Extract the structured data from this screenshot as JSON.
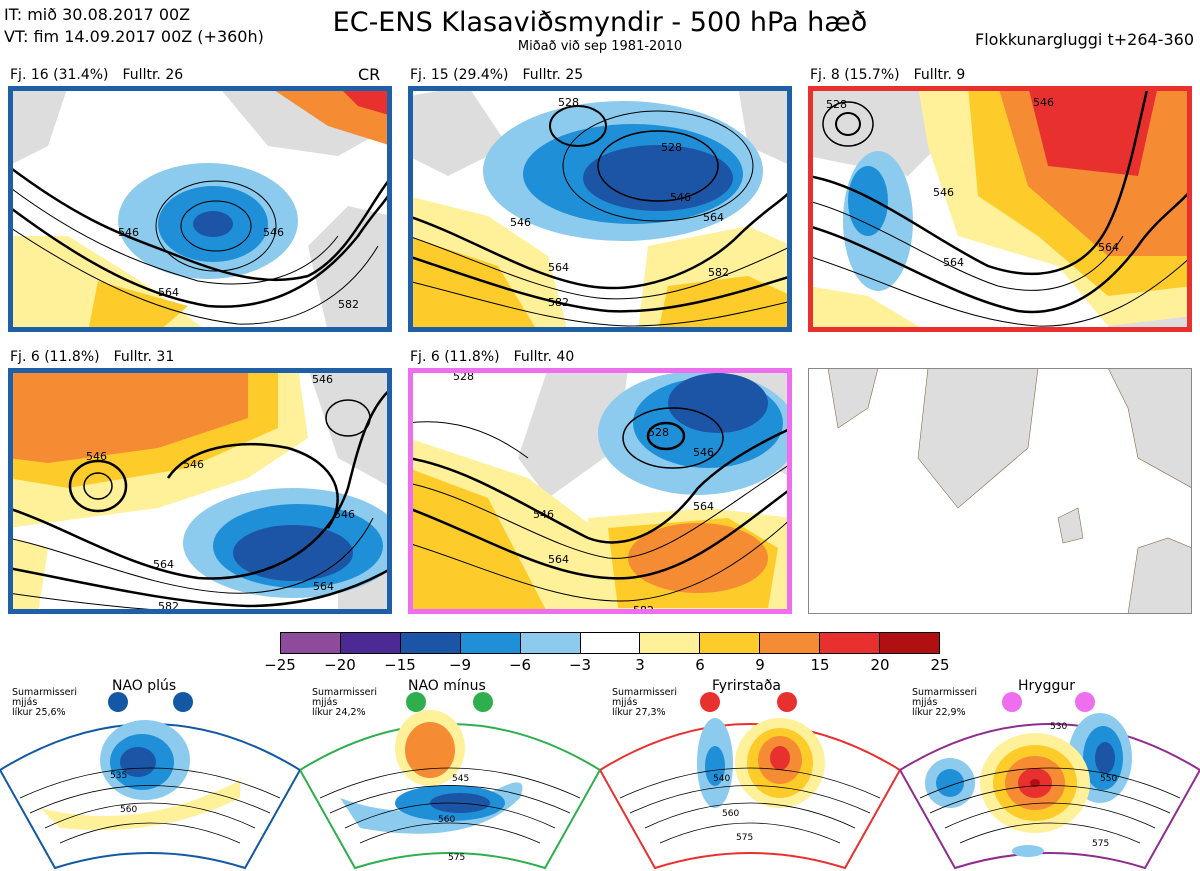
{
  "header": {
    "init_time": "IT: mið 30.08.2017 00Z",
    "valid_time": "VT: fim 14.09.2017 00Z  (+360h)",
    "title": "EC-ENS Klasaviðsmyndir - 500 hPa hæð",
    "subtitle": "Miðað við sep 1981-2010",
    "window": "Flokkunargluggi t+264-360"
  },
  "clusters": [
    {
      "count": "Fj. 16 (31.4%)",
      "rep": "Fulltr. 26",
      "tag": "CR",
      "frame_color": "#1f5fa8",
      "contours": [
        "546",
        "546",
        "564",
        "582"
      ]
    },
    {
      "count": "Fj. 15 (29.4%)",
      "rep": "Fulltr. 25",
      "tag": "",
      "frame_color": "#1f5fa8",
      "contours": [
        "528",
        "528",
        "546",
        "546",
        "564",
        "564",
        "582",
        "582"
      ]
    },
    {
      "count": "Fj. 8 (15.7%)",
      "rep": "Fulltr. 9",
      "tag": "",
      "frame_color": "#e8312f",
      "contours": [
        "528",
        "546",
        "546",
        "564",
        "564"
      ]
    },
    {
      "count": "Fj. 6 (11.8%)",
      "rep": "Fulltr. 31",
      "tag": "",
      "frame_color": "#1f5fa8",
      "contours": [
        "546",
        "546",
        "546",
        "546",
        "564",
        "564",
        "582"
      ]
    },
    {
      "count": "Fj. 6 (11.8%)",
      "rep": "Fulltr. 40",
      "tag": "",
      "frame_color": "#ee6fee",
      "contours": [
        "528",
        "528",
        "546",
        "546",
        "564",
        "564",
        "582"
      ]
    }
  ],
  "colorbar": {
    "colors": [
      "#8e4a9b",
      "#4b2a94",
      "#1c55a5",
      "#1f8fd8",
      "#8ccbee",
      "#ffffff",
      "#fff09a",
      "#fdcc2a",
      "#f58b33",
      "#e8312f",
      "#b20f12"
    ],
    "ticks": [
      "−25",
      "−20",
      "−15",
      "−9",
      "−6",
      "−3",
      "3",
      "6",
      "9",
      "15",
      "20",
      "25"
    ]
  },
  "regimes": [
    {
      "name": "NAO plús",
      "season": "Sumarmisseri",
      "smoothing": "mjjás",
      "likelihood": "líkur 25,6%",
      "color": "#1358a4",
      "contours": [
        "535",
        "560"
      ]
    },
    {
      "name": "NAO mínus",
      "season": "Sumarmisseri",
      "smoothing": "mjjás",
      "likelihood": "líkur 24,2%",
      "color": "#2fae4e",
      "contours": [
        "545",
        "560",
        "575"
      ]
    },
    {
      "name": "Fyrirstaða",
      "season": "Sumarmisseri",
      "smoothing": "mjjás",
      "likelihood": "líkur 27,3%",
      "color": "#e8312f",
      "contours": [
        "540",
        "560",
        "575"
      ]
    },
    {
      "name": "Hryggur",
      "season": "Sumarmisseri",
      "smoothing": "mjjás",
      "likelihood": "líkur 22,9%",
      "color": "#ee6fee",
      "contours": [
        "530",
        "550",
        "575"
      ]
    }
  ]
}
